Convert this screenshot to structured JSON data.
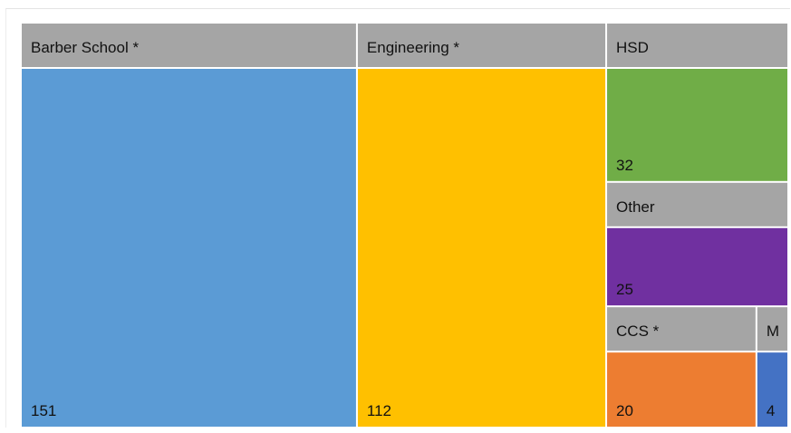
{
  "chart_data": {
    "type": "treemap",
    "title": "",
    "groups": [
      {
        "name": "Barber School *",
        "value": 151,
        "color": "#5b9bd5",
        "header_color": "#a5a5a5"
      },
      {
        "name": "Engineering *",
        "value": 112,
        "color": "#ffc000",
        "header_color": "#a5a5a5"
      },
      {
        "name": "HSD",
        "value": 32,
        "color": "#70ad47",
        "header_color": "#a5a5a5"
      },
      {
        "name": "Other",
        "value": 25,
        "color": "#7030a0",
        "header_color": "#a5a5a5"
      },
      {
        "name": "CCS *",
        "value": 20,
        "color": "#ed7d31",
        "header_color": "#a5a5a5"
      },
      {
        "name": "M",
        "value": 4,
        "color": "#4472c4",
        "header_color": "#a5a5a5"
      }
    ]
  }
}
